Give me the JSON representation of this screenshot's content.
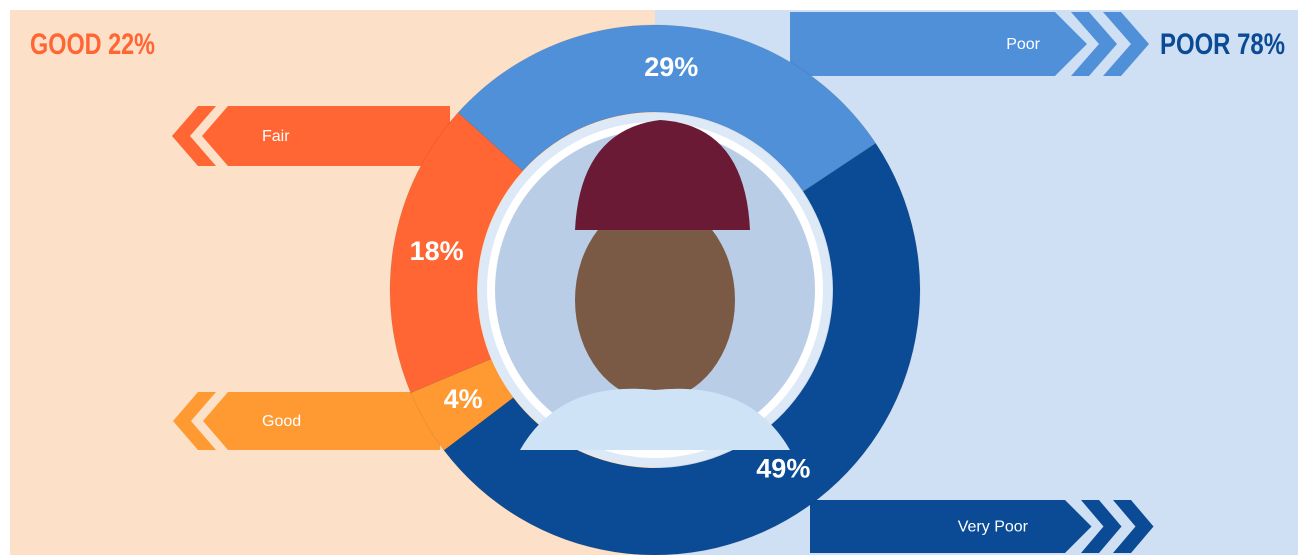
{
  "chart_data": {
    "type": "pie",
    "categories": [
      "Poor",
      "Very Poor",
      "Good",
      "Fair"
    ],
    "values": [
      29,
      49,
      4,
      18
    ],
    "value_labels": [
      "29%",
      "49%",
      "4%",
      "18%"
    ],
    "colors": [
      "#4f90d9",
      "#0b4a94",
      "#ff9a33",
      "#ff6633"
    ],
    "annotations": [
      {
        "text": "GOOD 22%",
        "color": "#ff6633"
      },
      {
        "text": "POOR 78%",
        "color": "#0b4a94"
      }
    ]
  }
}
